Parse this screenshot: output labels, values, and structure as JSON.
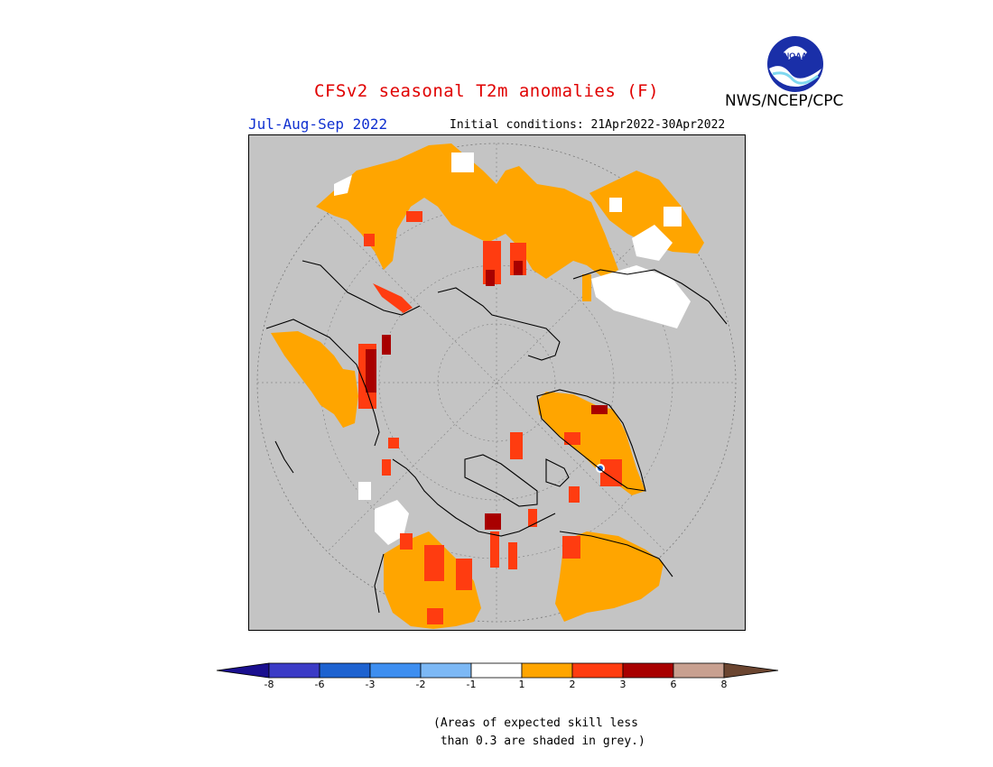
{
  "header": {
    "title": "CFSv2 seasonal T2m anomalies (F)",
    "period": "Jul-Aug-Sep 2022",
    "initial_conditions": "Initial conditions: 21Apr2022-30Apr2022",
    "agency": "NWS/NCEP/CPC",
    "logo_text": "NOAA"
  },
  "legend": {
    "tick_labels": [
      "-8",
      "-6",
      "-3",
      "-2",
      "-1",
      "1",
      "2",
      "3",
      "6",
      "8"
    ],
    "colors": [
      "#1a0f8f",
      "#3b3bc6",
      "#1d62d0",
      "#3d8ef0",
      "#7cb8f5",
      "#ffffff",
      "#ffa500",
      "#ff3c10",
      "#a80000",
      "#c8a090",
      "#6b4530"
    ]
  },
  "note": {
    "line1": "(Areas of expected skill less",
    "line2": " than 0.3 are shaded in grey.)"
  },
  "colors": {
    "background_grey": "#c4c4c4",
    "anom_1_2": "#ffa500",
    "anom_2_3": "#ff3c10",
    "anom_3_6": "#a80000",
    "near_zero": "#ffffff"
  }
}
